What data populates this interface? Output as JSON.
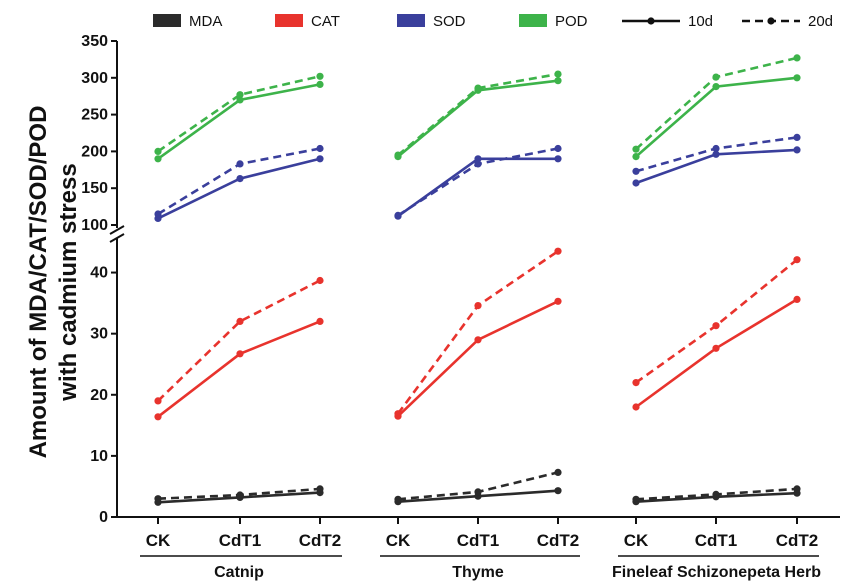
{
  "chart_data": {
    "type": "line",
    "ylabel_line1": "Amount of MDA/CAT/SOD/POD",
    "ylabel_line2": "with cadmium stress",
    "groups": [
      "Catnip",
      "Thyme",
      "Fineleaf Schizonepeta Herb"
    ],
    "categories": [
      "CK",
      "CdT1",
      "CdT2"
    ],
    "axis_break": {
      "lower_range": [
        0,
        45
      ],
      "upper_range": [
        100,
        350
      ]
    },
    "lower_ticks": [
      0,
      10,
      20,
      30,
      40
    ],
    "upper_ticks": [
      100,
      150,
      200,
      250,
      300,
      350
    ],
    "legend_items": [
      {
        "label": "MDA",
        "color": "#2b2b2b"
      },
      {
        "label": "CAT",
        "color": "#e8332d"
      },
      {
        "label": "SOD",
        "color": "#3a3f9c"
      },
      {
        "label": "POD",
        "color": "#3db34a"
      }
    ],
    "line_styles": [
      {
        "label": "10d",
        "style": "solid"
      },
      {
        "label": "20d",
        "style": "dashed"
      }
    ],
    "series": [
      {
        "measure": "MDA",
        "day": "10d",
        "values": [
          [
            2.4,
            3.2,
            4.0
          ],
          [
            2.5,
            3.4,
            4.3
          ],
          [
            2.5,
            3.3,
            3.9
          ]
        ]
      },
      {
        "measure": "MDA",
        "day": "20d",
        "values": [
          [
            3.0,
            3.6,
            4.6
          ],
          [
            2.9,
            4.1,
            7.3
          ],
          [
            2.9,
            3.7,
            4.6
          ]
        ]
      },
      {
        "measure": "CAT",
        "day": "10d",
        "values": [
          [
            16.4,
            26.7,
            32.0
          ],
          [
            16.5,
            29.0,
            35.3
          ],
          [
            18.0,
            27.6,
            35.6
          ]
        ]
      },
      {
        "measure": "CAT",
        "day": "20d",
        "values": [
          [
            19.0,
            32.0,
            38.7
          ],
          [
            16.9,
            34.6,
            43.5
          ],
          [
            22.0,
            31.3,
            42.1
          ]
        ]
      },
      {
        "measure": "SOD",
        "day": "10d",
        "values": [
          [
            109,
            163,
            190
          ],
          [
            112,
            190,
            190
          ],
          [
            157,
            196,
            202
          ]
        ]
      },
      {
        "measure": "SOD",
        "day": "20d",
        "values": [
          [
            115,
            183,
            204
          ],
          [
            113,
            183,
            204
          ],
          [
            173,
            204,
            219
          ]
        ]
      },
      {
        "measure": "POD",
        "day": "10d",
        "values": [
          [
            190,
            270,
            291
          ],
          [
            193,
            283,
            296
          ],
          [
            193,
            288,
            300
          ]
        ]
      },
      {
        "measure": "POD",
        "day": "20d",
        "values": [
          [
            200,
            277,
            302
          ],
          [
            195,
            286,
            305
          ],
          [
            203,
            301,
            327
          ]
        ]
      }
    ]
  }
}
